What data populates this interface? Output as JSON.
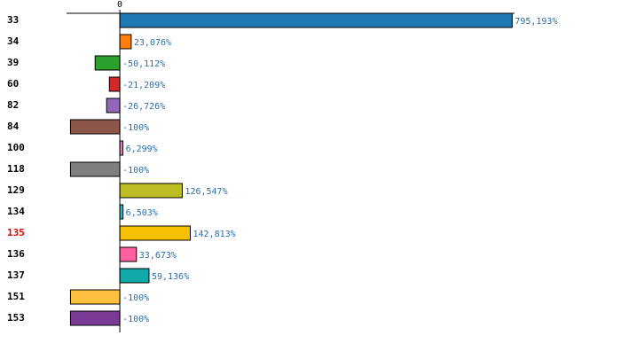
{
  "chart_data": {
    "type": "barh",
    "categories": [
      "33",
      "34",
      "39",
      "60",
      "82",
      "84",
      "100",
      "118",
      "129",
      "134",
      "135",
      "136",
      "137",
      "151",
      "153"
    ],
    "series": [
      {
        "values": [
          795.193,
          23.076,
          -50.112,
          -21.209,
          -26.726,
          -100,
          6.299,
          -100,
          126.547,
          6.503,
          142.813,
          33.673,
          59.136,
          -100,
          -100
        ],
        "value_labels": [
          "795,193%",
          "23,076%",
          "-50,112%",
          "-21,209%",
          "-26,726%",
          "-100%",
          "6,299%",
          "-100%",
          "126,547%",
          "6,503%",
          "142,813%",
          "33,673%",
          "59,136%",
          "-100%",
          "-100%"
        ],
        "colors": [
          "#1f77b4",
          "#ff7f0e",
          "#2ca02c",
          "#d62728",
          "#9467bd",
          "#8c564b",
          "#e377c2",
          "#7f7f7f",
          "#bcbd22",
          "#17becf",
          "#f5c000",
          "#ff5f9e",
          "#12aaa8",
          "#ffc040",
          "#7b3a96"
        ]
      }
    ],
    "xlim": [
      -108,
      800
    ],
    "xticks": [
      0
    ],
    "highlight": {
      "index": 10,
      "color": "#e00000"
    },
    "value_label_color": "#2a6fa8"
  }
}
